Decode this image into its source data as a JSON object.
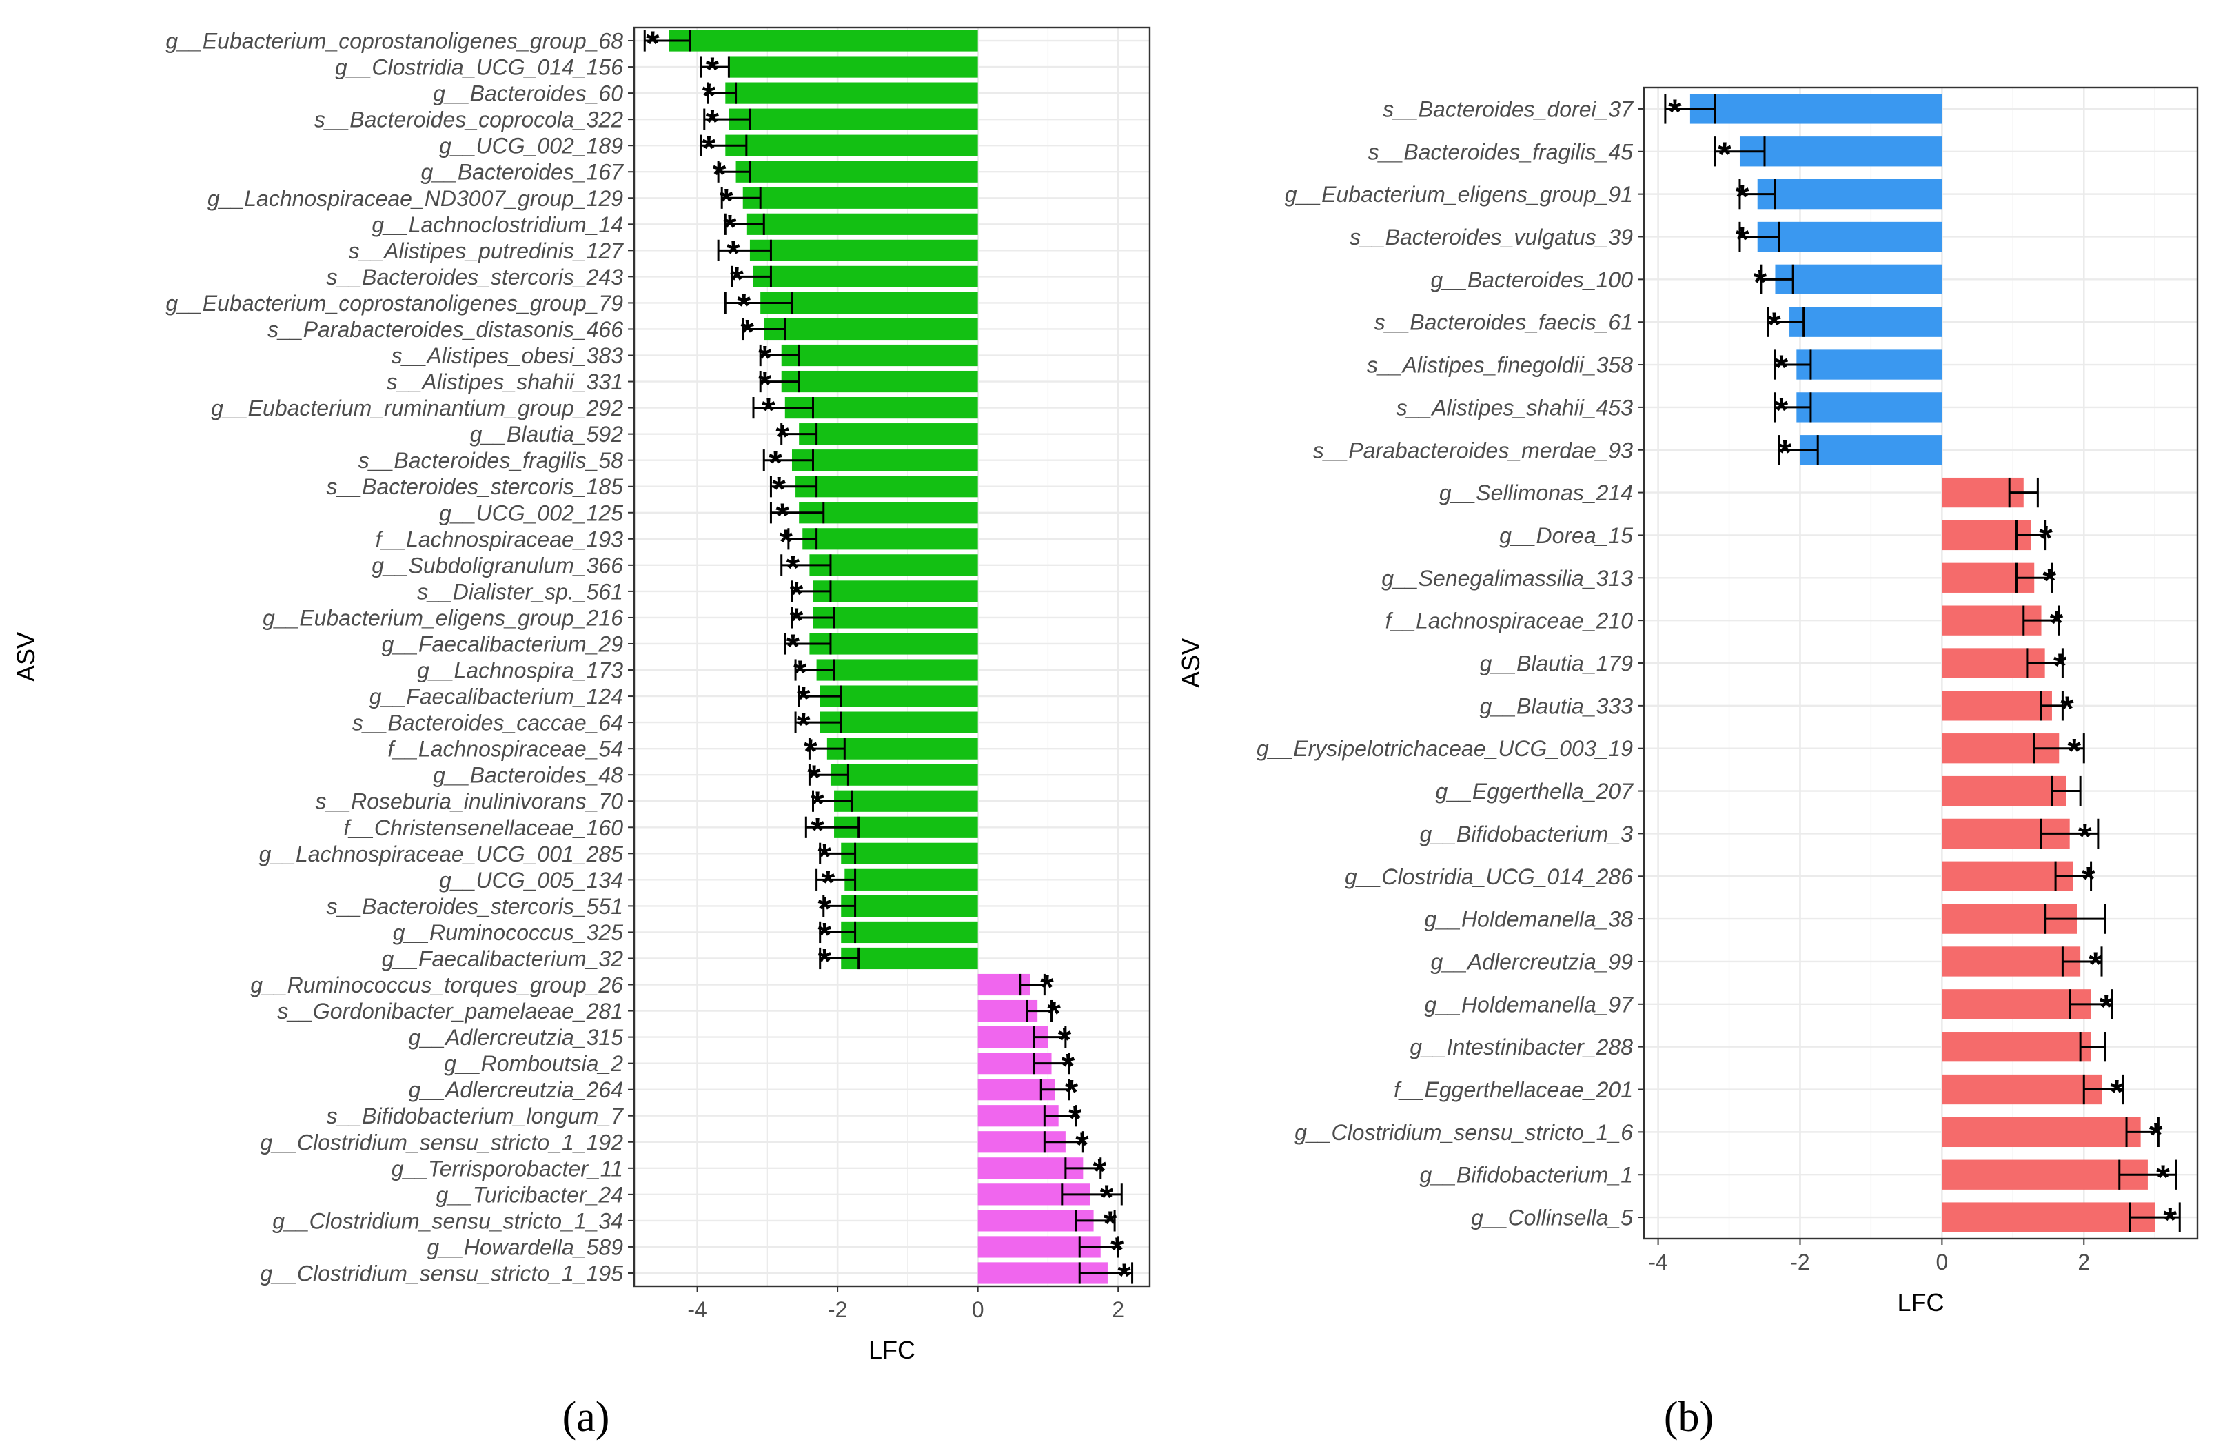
{
  "chart_data": [
    {
      "type": "bar",
      "orientation": "horizontal",
      "caption": "(a)",
      "xlabel": "LFC",
      "ylabel": "ASV",
      "xlim": [
        -4.9,
        2.45
      ],
      "xticks": [
        -4,
        -2,
        0,
        2
      ],
      "xtick_labels": [
        "-4",
        "-2",
        "0",
        "2"
      ],
      "colors": {
        "negative": "#13c013",
        "positive": "#f066ee"
      },
      "significance_marker": "*",
      "categories": [
        "g__Eubacterium_coprostanoligenes_group_68",
        "g__Clostridia_UCG_014_156",
        "g__Bacteroides_60",
        "s__Bacteroides_coprocola_322",
        "g__UCG_002_189",
        "g__Bacteroides_167",
        "g__Lachnospiraceae_ND3007_group_129",
        "g__Lachnoclostridium_14",
        "s__Alistipes_putredinis_127",
        "s__Bacteroides_stercoris_243",
        "g__Eubacterium_coprostanoligenes_group_79",
        "s__Parabacteroides_distasonis_466",
        "s__Alistipes_obesi_383",
        "s__Alistipes_shahii_331",
        "g__Eubacterium_ruminantium_group_292",
        "g__Blautia_592",
        "s__Bacteroides_fragilis_58",
        "s__Bacteroides_stercoris_185",
        "g__UCG_002_125",
        "f__Lachnospiraceae_193",
        "g__Subdoligranulum_366",
        "s__Dialister_sp._561",
        "g__Eubacterium_eligens_group_216",
        "g__Faecalibacterium_29",
        "g__Lachnospira_173",
        "g__Faecalibacterium_124",
        "s__Bacteroides_caccae_64",
        "f__Lachnospiraceae_54",
        "g__Bacteroides_48",
        "s__Roseburia_inulinivorans_70",
        "f__Christensenellaceae_160",
        "g__Lachnospiraceae_UCG_001_285",
        "g__UCG_005_134",
        "s__Bacteroides_stercoris_551",
        "g__Ruminococcus_325",
        "g__Faecalibacterium_32",
        "g__Ruminococcus_torques_group_26",
        "s__Gordonibacter_pamelaeae_281",
        "g__Adlercreutzia_315",
        "g__Romboutsia_2",
        "g__Adlercreutzia_264",
        "s__Bifidobacterium_longum_7",
        "g__Clostridium_sensu_stricto_1_192",
        "g__Terrisporobacter_11",
        "g__Turicibacter_24",
        "g__Clostridium_sensu_stricto_1_34",
        "g__Howardella_589",
        "g__Clostridium_sensu_stricto_1_195"
      ],
      "values": [
        -4.4,
        -3.55,
        -3.6,
        -3.55,
        -3.6,
        -3.45,
        -3.35,
        -3.3,
        -3.25,
        -3.2,
        -3.1,
        -3.05,
        -2.8,
        -2.8,
        -2.75,
        -2.55,
        -2.65,
        -2.6,
        -2.55,
        -2.5,
        -2.4,
        -2.35,
        -2.35,
        -2.4,
        -2.3,
        -2.25,
        -2.25,
        -2.15,
        -2.1,
        -2.05,
        -2.05,
        -1.95,
        -1.9,
        -1.95,
        -1.95,
        -1.95,
        0.75,
        0.85,
        1.0,
        1.05,
        1.1,
        1.15,
        1.25,
        1.5,
        1.6,
        1.65,
        1.75,
        1.85
      ],
      "lower": [
        -4.75,
        -3.95,
        -3.85,
        -3.9,
        -3.95,
        -3.7,
        -3.65,
        -3.6,
        -3.7,
        -3.5,
        -3.6,
        -3.35,
        -3.1,
        -3.1,
        -3.2,
        -2.8,
        -3.05,
        -2.95,
        -2.95,
        -2.7,
        -2.8,
        -2.65,
        -2.65,
        -2.75,
        -2.6,
        -2.55,
        -2.6,
        -2.4,
        -2.4,
        -2.35,
        -2.45,
        -2.25,
        -2.3,
        -2.2,
        -2.25,
        -2.25,
        0.6,
        0.7,
        0.8,
        0.8,
        0.9,
        0.95,
        0.95,
        1.25,
        1.2,
        1.4,
        1.45,
        1.45
      ],
      "upper": [
        -4.1,
        -3.55,
        -3.45,
        -3.25,
        -3.3,
        -3.25,
        -3.1,
        -3.05,
        -2.95,
        -2.95,
        -2.65,
        -2.75,
        -2.55,
        -2.55,
        -2.35,
        -2.3,
        -2.35,
        -2.3,
        -2.2,
        -2.3,
        -2.1,
        -2.1,
        -2.05,
        -2.1,
        -2.05,
        -1.95,
        -1.95,
        -1.9,
        -1.85,
        -1.8,
        -1.7,
        -1.75,
        -1.75,
        -1.75,
        -1.75,
        -1.7,
        0.95,
        1.05,
        1.25,
        1.3,
        1.3,
        1.4,
        1.5,
        1.75,
        2.05,
        1.95,
        2.0,
        2.2
      ],
      "significant": [
        true,
        true,
        true,
        true,
        true,
        true,
        true,
        true,
        true,
        true,
        true,
        true,
        true,
        true,
        true,
        true,
        true,
        true,
        true,
        true,
        true,
        true,
        true,
        true,
        true,
        true,
        true,
        true,
        true,
        true,
        true,
        true,
        true,
        true,
        true,
        true,
        true,
        true,
        true,
        true,
        true,
        true,
        true,
        true,
        true,
        true,
        true,
        true
      ]
    },
    {
      "type": "bar",
      "orientation": "horizontal",
      "caption": "(b)",
      "xlabel": "LFC",
      "ylabel": "ASV",
      "xlim": [
        -4.2,
        3.6
      ],
      "xticks": [
        -4,
        -2,
        0,
        2
      ],
      "xtick_labels": [
        "-4",
        "-2",
        "0",
        "2"
      ],
      "colors": {
        "negative": "#3a98f0",
        "positive": "#f56b6b"
      },
      "significance_marker": "*",
      "categories": [
        "s__Bacteroides_dorei_37",
        "s__Bacteroides_fragilis_45",
        "g__Eubacterium_eligens_group_91",
        "s__Bacteroides_vulgatus_39",
        "g__Bacteroides_100",
        "s__Bacteroides_faecis_61",
        "s__Alistipes_finegoldii_358",
        "s__Alistipes_shahii_453",
        "s__Parabacteroides_merdae_93",
        "g__Sellimonas_214",
        "g__Dorea_15",
        "g__Senegalimassilia_313",
        "f__Lachnospiraceae_210",
        "g__Blautia_179",
        "g__Blautia_333",
        "g__Erysipelotrichaceae_UCG_003_19",
        "g__Eggerthella_207",
        "g__Bifidobacterium_3",
        "g__Clostridia_UCG_014_286",
        "g__Holdemanella_38",
        "g__Adlercreutzia_99",
        "g__Holdemanella_97",
        "g__Intestinibacter_288",
        "f__Eggerthellaceae_201",
        "g__Clostridium_sensu_stricto_1_6",
        "g__Bifidobacterium_1",
        "g__Collinsella_5"
      ],
      "values": [
        -3.55,
        -2.85,
        -2.6,
        -2.6,
        -2.35,
        -2.15,
        -2.05,
        -2.05,
        -2.0,
        1.15,
        1.25,
        1.3,
        1.4,
        1.45,
        1.55,
        1.65,
        1.75,
        1.8,
        1.85,
        1.9,
        1.95,
        2.1,
        2.1,
        2.25,
        2.8,
        2.9,
        3.0
      ],
      "lower": [
        -3.9,
        -3.2,
        -2.85,
        -2.85,
        -2.55,
        -2.45,
        -2.35,
        -2.35,
        -2.3,
        0.95,
        1.05,
        1.05,
        1.15,
        1.2,
        1.4,
        1.3,
        1.55,
        1.4,
        1.6,
        1.45,
        1.7,
        1.8,
        1.95,
        2.0,
        2.6,
        2.5,
        2.65
      ],
      "upper": [
        -3.2,
        -2.5,
        -2.35,
        -2.3,
        -2.1,
        -1.95,
        -1.85,
        -1.85,
        -1.75,
        1.35,
        1.45,
        1.55,
        1.65,
        1.7,
        1.7,
        2.0,
        1.95,
        2.2,
        2.1,
        2.3,
        2.25,
        2.4,
        2.3,
        2.55,
        3.05,
        3.3,
        3.35
      ],
      "significant": [
        true,
        true,
        true,
        true,
        true,
        true,
        true,
        true,
        true,
        false,
        true,
        true,
        true,
        true,
        true,
        true,
        false,
        true,
        true,
        false,
        true,
        true,
        false,
        true,
        true,
        true,
        true
      ]
    }
  ]
}
